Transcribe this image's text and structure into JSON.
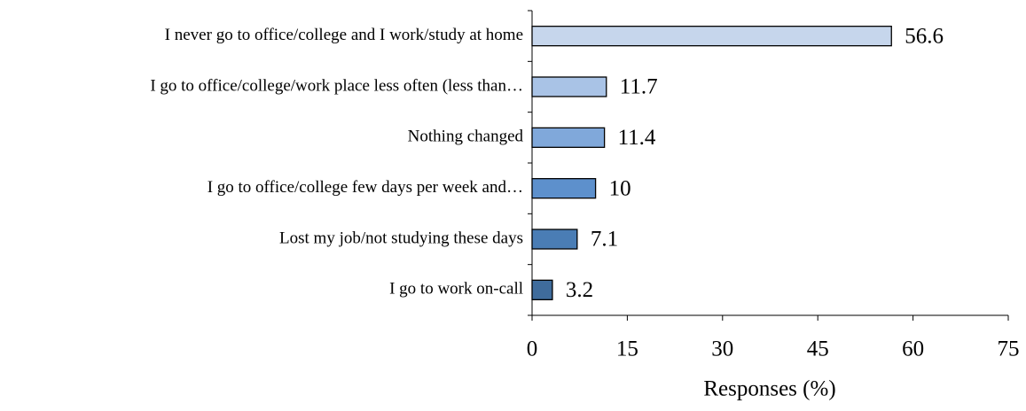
{
  "chart_data": {
    "type": "bar",
    "orientation": "horizontal",
    "x_label": "Responses (%)",
    "categories": [
      "I never go to office/college and I work/study at home",
      "I go to office/college/work place less often (less than…",
      "Nothing changed",
      "I go to office/college few days per week and…",
      "Lost my job/not studying these days",
      "I go to work on-call"
    ],
    "values": [
      56.6,
      11.7,
      11.4,
      10,
      7.1,
      3.2
    ],
    "colors": [
      "#c6d6ec",
      "#a9c3e6",
      "#80a8da",
      "#5d90cc",
      "#4a7db5",
      "#3f6c9c"
    ],
    "xlim": [
      0,
      75
    ],
    "xticks": [
      0,
      15,
      30,
      45,
      60,
      75
    ],
    "grid": false
  }
}
